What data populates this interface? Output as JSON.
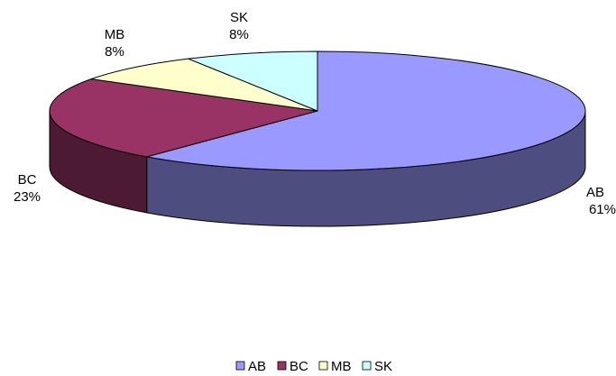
{
  "chart_data": {
    "type": "pie",
    "style": "3d-tilted",
    "start_angle_deg": -90,
    "direction": "clockwise",
    "categories": [
      "AB",
      "BC",
      "MB",
      "SK"
    ],
    "values": [
      61,
      23,
      8,
      8
    ],
    "value_labels": [
      "61%",
      "23%",
      "8%",
      "8%"
    ],
    "colors": {
      "top": [
        "#9999ff",
        "#993366",
        "#ffffcc",
        "#ccffff"
      ],
      "side": [
        "#4d4d80",
        "#4d1a33",
        "#808066",
        "#668080"
      ]
    },
    "legend": {
      "placement": "bottom",
      "entries": [
        "AB",
        "BC",
        "MB",
        "SK"
      ]
    }
  }
}
